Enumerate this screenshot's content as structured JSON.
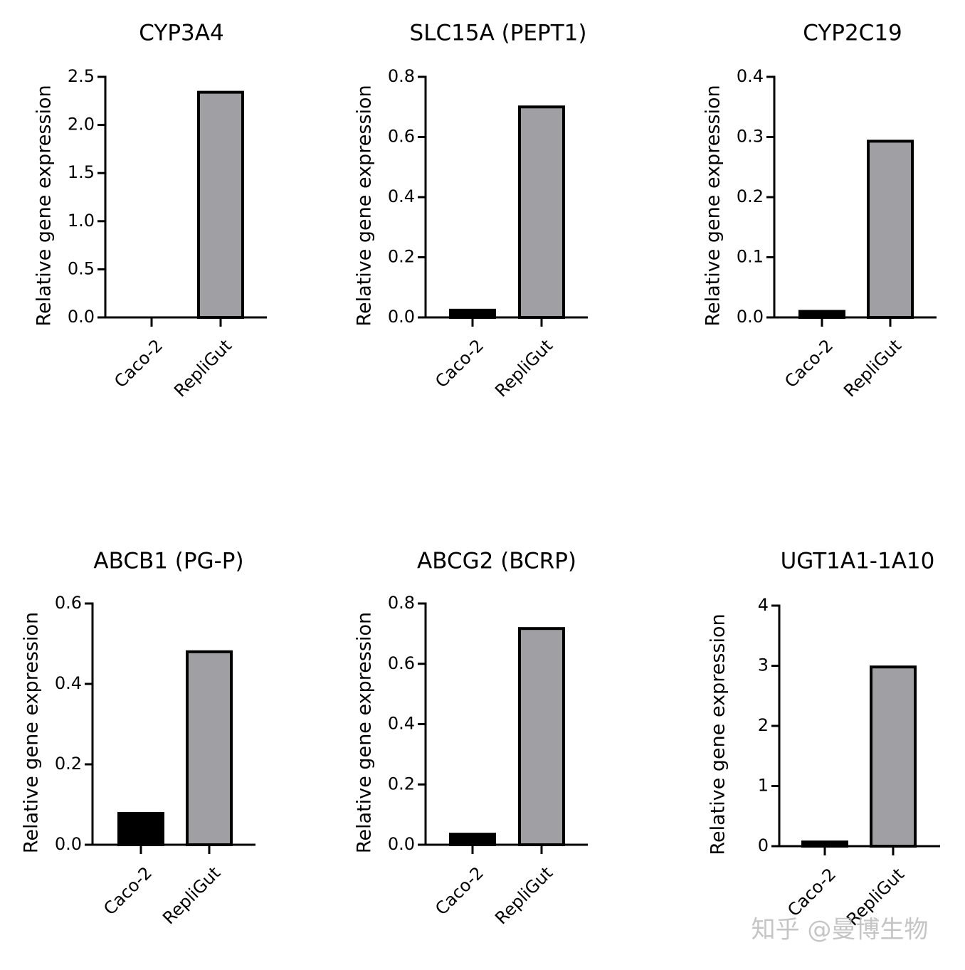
{
  "chart_data": [
    {
      "type": "bar",
      "title": "CYP3A4",
      "y_label": "Relative gene expression",
      "categories": [
        "Caco-2",
        "RepliGut"
      ],
      "values": [
        0,
        2.34
      ],
      "colors": [
        "#000000",
        "#a0a0a4"
      ],
      "ylim": [
        0,
        2.5
      ],
      "yticks": [
        {
          "value": 0,
          "label": "0.0"
        },
        0.5,
        {
          "value": 1,
          "label": "1.0"
        },
        1.5,
        {
          "value": 2,
          "label": "2.0"
        },
        2.5
      ]
    },
    {
      "type": "bar",
      "title": "SLC15A (PEPT1)",
      "y_label": "Relative gene expression",
      "categories": [
        "Caco-2",
        "RepliGut"
      ],
      "values": [
        0.024,
        0.7
      ],
      "colors": [
        "#000000",
        "#a0a0a4"
      ],
      "ylim": [
        0,
        0.8
      ],
      "yticks": [
        {
          "value": 0,
          "label": "0.0"
        },
        0.2,
        0.4,
        0.6,
        0.8
      ]
    },
    {
      "type": "bar",
      "title": "CYP2C19",
      "y_label": "Relative gene expression",
      "categories": [
        "Caco-2",
        "RepliGut"
      ],
      "values": [
        0.01,
        0.293
      ],
      "colors": [
        "#000000",
        "#a0a0a4"
      ],
      "ylim": [
        0,
        0.4
      ],
      "yticks": [
        {
          "value": 0,
          "label": "0.0"
        },
        0.1,
        0.2,
        0.3,
        0.4
      ]
    },
    {
      "type": "bar",
      "title": "ABCB1 (PG-P)",
      "y_label": "Relative gene expression",
      "categories": [
        "Caco-2",
        "RepliGut"
      ],
      "values": [
        0.078,
        0.48
      ],
      "colors": [
        "#000000",
        "#a0a0a4"
      ],
      "ylim": [
        0,
        0.6
      ],
      "yticks": [
        {
          "value": 0,
          "label": "0.0"
        },
        0.2,
        0.4,
        0.6
      ]
    },
    {
      "type": "bar",
      "title": "ABCG2 (BCRP)",
      "y_label": "Relative gene expression",
      "categories": [
        "Caco-2",
        "RepliGut"
      ],
      "values": [
        0.035,
        0.717
      ],
      "colors": [
        "#000000",
        "#a0a0a4"
      ],
      "ylim": [
        0,
        0.8
      ],
      "yticks": [
        {
          "value": 0,
          "label": "0.0"
        },
        0.2,
        0.4,
        0.6,
        0.8
      ]
    },
    {
      "type": "bar",
      "title": "UGT1A1-1A10",
      "y_label": "Relative gene expression",
      "categories": [
        "Caco-2",
        "RepliGut"
      ],
      "values": [
        0.07,
        2.98
      ],
      "colors": [
        "#000000",
        "#a0a0a4"
      ],
      "ylim": [
        0,
        4
      ],
      "yticks": [
        0,
        1,
        2,
        3,
        4
      ]
    }
  ],
  "watermark": "知乎 @曼博生物"
}
